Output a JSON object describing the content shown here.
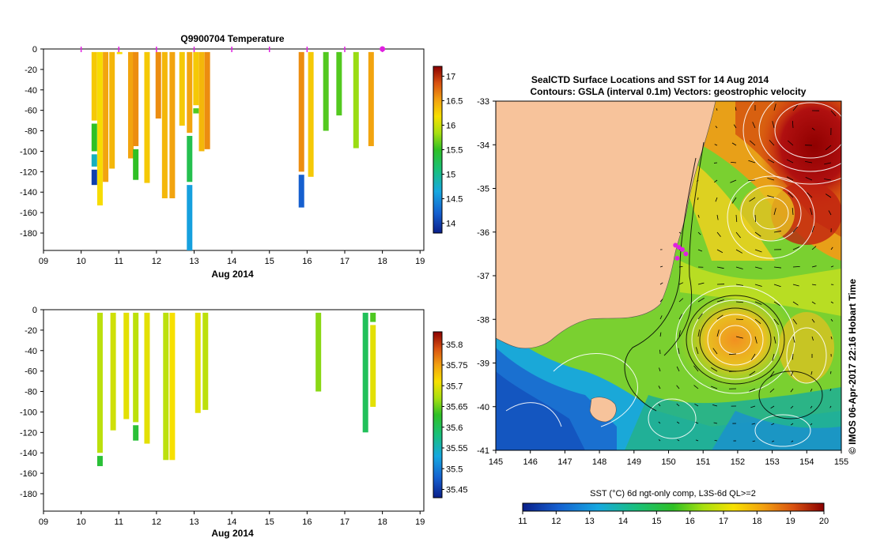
{
  "top_title": "Q9900704  Temperature",
  "map_title_line1": "SealCTD Surface Locations and SST for 14 Aug 2014",
  "map_title_line2": "Contours: GSLA (interval 0.1m) Vectors: geostrophic velocity",
  "xaxis_label": "Aug 2014",
  "copyright": "© IMOS 06-Apr-2017 22:16 Hobart Time",
  "sst_label": "SST (°C) 6d ngt-only comp, L3S-6d QL>=2",
  "colors": {
    "land": "#f7c39b",
    "marker": "#e020e0"
  },
  "chart_data": [
    {
      "type": "heatmap",
      "title": "Q9900704  Temperature",
      "xlabel": "Aug 2014",
      "x_ticks": [
        "09",
        "10",
        "11",
        "12",
        "13",
        "14",
        "15",
        "16",
        "17",
        "18",
        "19"
      ],
      "y_ticks": [
        "0",
        "-20",
        "-40",
        "-60",
        "-80",
        "-100",
        "-120",
        "-140",
        "-160",
        "-180"
      ],
      "xlim": [
        9,
        19.1
      ],
      "ylim": [
        -197,
        0
      ],
      "colorbar": {
        "ticks": [
          "14",
          "14.5",
          "15",
          "15.5",
          "16",
          "16.5",
          "17"
        ],
        "range": [
          13.8,
          17.2
        ]
      },
      "profiles": [
        {
          "x": 10.35,
          "bottom": -133,
          "segments": [
            [
              0,
              -70,
              16.3
            ],
            [
              -70,
              -100,
              15.5
            ],
            [
              -100,
              -115,
              14.8
            ],
            [
              -115,
              -133,
              14.0
            ]
          ]
        },
        {
          "x": 10.5,
          "bottom": -153,
          "segments": [
            [
              0,
              -153,
              16.2
            ]
          ]
        },
        {
          "x": 10.65,
          "bottom": -130,
          "segments": [
            [
              0,
              -130,
              16.5
            ]
          ]
        },
        {
          "x": 10.82,
          "bottom": -117,
          "segments": [
            [
              0,
              -117,
              16.4
            ]
          ]
        },
        {
          "x": 11.02,
          "bottom": -5,
          "segments": [
            [
              0,
              -5,
              16.2
            ]
          ]
        },
        {
          "x": 11.32,
          "bottom": -107,
          "segments": [
            [
              0,
              -107,
              16.5
            ]
          ]
        },
        {
          "x": 11.45,
          "bottom": -128,
          "segments": [
            [
              0,
              -95,
              16.6
            ],
            [
              -95,
              -128,
              15.5
            ]
          ]
        },
        {
          "x": 11.75,
          "bottom": -131,
          "segments": [
            [
              0,
              -131,
              16.3
            ]
          ]
        },
        {
          "x": 12.05,
          "bottom": -68,
          "segments": [
            [
              0,
              -68,
              16.6
            ]
          ]
        },
        {
          "x": 12.22,
          "bottom": -146,
          "segments": [
            [
              0,
              -146,
              16.4
            ]
          ]
        },
        {
          "x": 12.42,
          "bottom": -146,
          "segments": [
            [
              0,
              -146,
              16.5
            ]
          ]
        },
        {
          "x": 12.68,
          "bottom": -75,
          "segments": [
            [
              0,
              -75,
              16.3
            ]
          ]
        },
        {
          "x": 12.88,
          "bottom": -197,
          "segments": [
            [
              0,
              -82,
              16.5
            ],
            [
              -82,
              -130,
              15.3
            ],
            [
              -130,
              -197,
              14.6
            ]
          ]
        },
        {
          "x": 13.05,
          "bottom": -63,
          "segments": [
            [
              0,
              -55,
              16.3
            ],
            [
              -55,
              -63,
              15.6
            ]
          ]
        },
        {
          "x": 13.2,
          "bottom": -100,
          "segments": [
            [
              0,
              -100,
              16.4
            ]
          ]
        },
        {
          "x": 13.35,
          "bottom": -98,
          "segments": [
            [
              0,
              -98,
              16.6
            ]
          ]
        },
        {
          "x": 15.85,
          "bottom": -155,
          "segments": [
            [
              0,
              -120,
              16.6
            ],
            [
              -120,
              -155,
              14.2
            ]
          ]
        },
        {
          "x": 16.1,
          "bottom": -125,
          "segments": [
            [
              0,
              -125,
              16.3
            ]
          ]
        },
        {
          "x": 16.5,
          "bottom": -80,
          "segments": [
            [
              0,
              -80,
              15.6
            ]
          ]
        },
        {
          "x": 16.85,
          "bottom": -65,
          "segments": [
            [
              0,
              -65,
              15.6
            ]
          ]
        },
        {
          "x": 17.3,
          "bottom": -97,
          "segments": [
            [
              0,
              -97,
              15.8
            ]
          ]
        },
        {
          "x": 17.7,
          "bottom": -95,
          "segments": [
            [
              0,
              -95,
              16.5
            ]
          ]
        }
      ],
      "markers_x": [
        10,
        11,
        12,
        13,
        14,
        15,
        16,
        17,
        18
      ]
    },
    {
      "type": "heatmap",
      "title": "",
      "xlabel": "Aug 2014",
      "x_ticks": [
        "09",
        "10",
        "11",
        "12",
        "13",
        "14",
        "15",
        "16",
        "17",
        "18",
        "19"
      ],
      "y_ticks": [
        "0",
        "-20",
        "-40",
        "-60",
        "-80",
        "-100",
        "-120",
        "-140",
        "-160",
        "-180"
      ],
      "xlim": [
        9,
        19.1
      ],
      "ylim": [
        -197,
        0
      ],
      "colorbar": {
        "ticks": [
          "35.45",
          "35.5",
          "35.55",
          "35.6",
          "35.65",
          "35.7",
          "35.75",
          "35.8"
        ],
        "range": [
          35.43,
          35.83
        ]
      },
      "profiles": [
        {
          "x": 10.5,
          "bottom": -153,
          "segments": [
            [
              0,
              -140,
              35.68
            ],
            [
              -140,
              -153,
              35.62
            ]
          ]
        },
        {
          "x": 10.85,
          "bottom": -118,
          "segments": [
            [
              0,
              -118,
              35.69
            ]
          ]
        },
        {
          "x": 11.2,
          "bottom": -107,
          "segments": [
            [
              0,
              -107,
              35.7
            ]
          ]
        },
        {
          "x": 11.45,
          "bottom": -128,
          "segments": [
            [
              0,
              -110,
              35.68
            ],
            [
              -110,
              -128,
              35.62
            ]
          ]
        },
        {
          "x": 11.75,
          "bottom": -131,
          "segments": [
            [
              0,
              -131,
              35.7
            ]
          ]
        },
        {
          "x": 12.25,
          "bottom": -147,
          "segments": [
            [
              0,
              -147,
              35.68
            ]
          ]
        },
        {
          "x": 12.42,
          "bottom": -147,
          "segments": [
            [
              0,
              -147,
              35.71
            ]
          ]
        },
        {
          "x": 13.1,
          "bottom": -101,
          "segments": [
            [
              0,
              -101,
              35.7
            ]
          ]
        },
        {
          "x": 13.3,
          "bottom": -98,
          "segments": [
            [
              0,
              -98,
              35.68
            ]
          ]
        },
        {
          "x": 16.3,
          "bottom": -80,
          "segments": [
            [
              0,
              -80,
              35.66
            ]
          ]
        },
        {
          "x": 17.55,
          "bottom": -120,
          "segments": [
            [
              0,
              -120,
              35.6
            ]
          ]
        },
        {
          "x": 17.75,
          "bottom": -95,
          "segments": [
            [
              0,
              -12,
              35.64
            ],
            [
              -12,
              -95,
              35.7
            ]
          ]
        }
      ]
    },
    {
      "type": "heatmap",
      "title": "SealCTD Surface Locations and SST for 14 Aug 2014",
      "x_ticks": [
        "145",
        "146",
        "147",
        "148",
        "149",
        "150",
        "151",
        "152",
        "153",
        "154",
        "155"
      ],
      "y_ticks": [
        "-33",
        "-34",
        "-35",
        "-36",
        "-37",
        "-38",
        "-39",
        "-40",
        "-41"
      ],
      "xlim": [
        145,
        155
      ],
      "ylim": [
        -41,
        -33
      ],
      "colorbar": {
        "ticks": [
          "11",
          "12",
          "13",
          "14",
          "15",
          "16",
          "17",
          "18",
          "19",
          "20"
        ],
        "range": [
          11,
          20
        ]
      },
      "seal_locations": [
        [
          150.2,
          -36.3
        ],
        [
          150.3,
          -36.35
        ],
        [
          150.4,
          -36.4
        ],
        [
          150.5,
          -36.5
        ],
        [
          150.25,
          -36.6
        ]
      ]
    }
  ]
}
